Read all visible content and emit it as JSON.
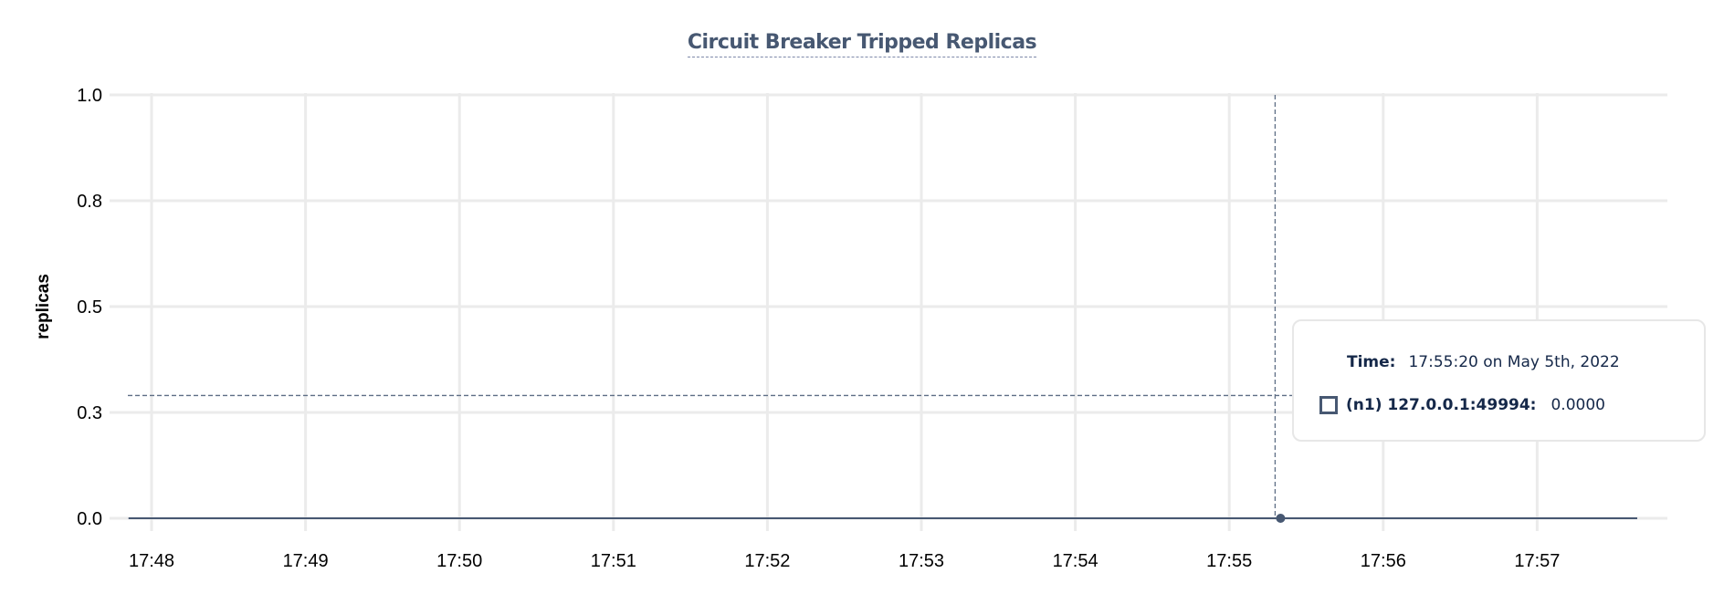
{
  "chart_data": {
    "type": "line",
    "title": "Circuit Breaker Tripped Replicas",
    "ylabel": "replicas",
    "xlabel": "",
    "ylim": [
      0,
      1
    ],
    "y_ticks": [
      {
        "value": 1.0,
        "label": "1.0"
      },
      {
        "value": 0.75,
        "label": "0.8"
      },
      {
        "value": 0.5,
        "label": "0.5"
      },
      {
        "value": 0.25,
        "label": "0.3"
      },
      {
        "value": 0.0,
        "label": "0.0"
      }
    ],
    "x_ticks": [
      "17:48",
      "17:49",
      "17:50",
      "17:51",
      "17:52",
      "17:53",
      "17:54",
      "17:55",
      "17:56",
      "17:57"
    ],
    "xlim": [
      "17:47:51",
      "17:57:39"
    ],
    "grid": true,
    "series": [
      {
        "name": "(n1) 127.0.0.1:49994",
        "color": "#475872",
        "points": [
          {
            "x": "17:47:51",
            "y": 0
          },
          {
            "x": "17:57:39",
            "y": 0
          }
        ]
      }
    ],
    "hover": {
      "x": "17:55:20",
      "y": 0.0,
      "crosshair_y": 0.29
    }
  },
  "tooltip": {
    "time_label": "Time:",
    "time_value": "17:55:20 on May 5th, 2022",
    "series_label": "(n1) 127.0.0.1:49994:",
    "series_value": "0.0000"
  }
}
